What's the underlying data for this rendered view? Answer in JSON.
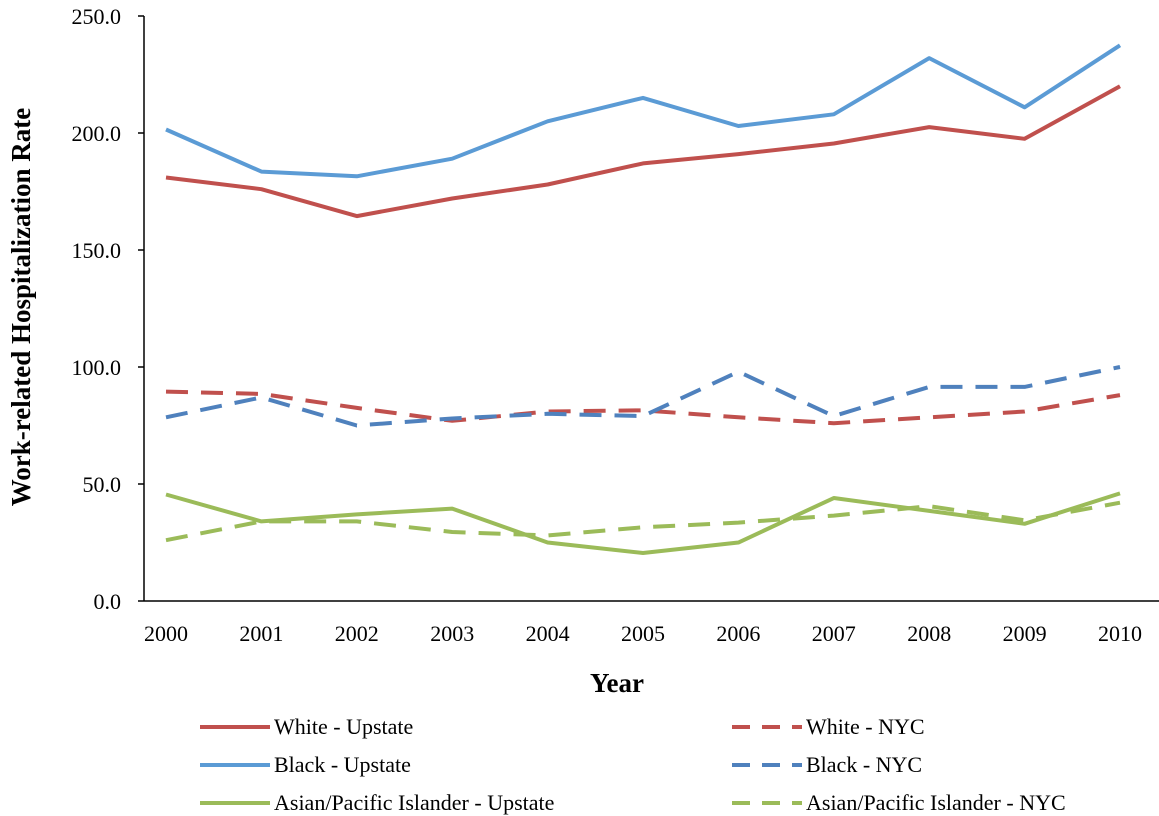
{
  "chart_data": {
    "type": "line",
    "title": "",
    "xlabel": "Year",
    "ylabel": "Work-related Hospitalization Rate",
    "categories": [
      "2000",
      "2001",
      "2002",
      "2003",
      "2004",
      "2005",
      "2006",
      "2007",
      "2008",
      "2009",
      "2010"
    ],
    "ylim": [
      0,
      250
    ],
    "yticks": [
      "0.0",
      "50.0",
      "100.0",
      "150.0",
      "200.0",
      "250.0"
    ],
    "grid": false,
    "legend_position": "bottom",
    "series": [
      {
        "name": "White - Upstate",
        "color": "#c0504d",
        "dashed": false,
        "values": [
          181,
          176,
          164.5,
          172,
          178,
          187,
          191,
          195.5,
          202.5,
          197.5,
          220
        ]
      },
      {
        "name": "White - NYC",
        "color": "#c0504d",
        "dashed": true,
        "values": [
          89.5,
          88.5,
          82.5,
          77,
          81,
          81.5,
          78.5,
          76,
          78.5,
          81,
          88
        ]
      },
      {
        "name": "Black - Upstate",
        "color": "#5b9bd5",
        "dashed": false,
        "values": [
          201.5,
          183.5,
          181.5,
          189,
          205,
          215,
          203,
          208,
          232,
          211,
          237.5
        ]
      },
      {
        "name": "Black - NYC",
        "color": "#4f81bd",
        "dashed": true,
        "values": [
          78.5,
          87,
          75,
          78,
          80,
          79,
          98,
          79,
          91.5,
          91.5,
          100
        ]
      },
      {
        "name": "Asian/Pacific Islander - Upstate",
        "color": "#9bbb59",
        "dashed": false,
        "values": [
          45.5,
          34,
          37,
          39.5,
          25,
          20.5,
          25,
          44,
          38.5,
          33,
          46
        ]
      },
      {
        "name": "Asian/Pacific Islander - NYC",
        "color": "#9bbb59",
        "dashed": true,
        "values": [
          26,
          34,
          34,
          29.5,
          28,
          31.5,
          33.5,
          36.5,
          40.5,
          34.5,
          42
        ]
      }
    ]
  }
}
